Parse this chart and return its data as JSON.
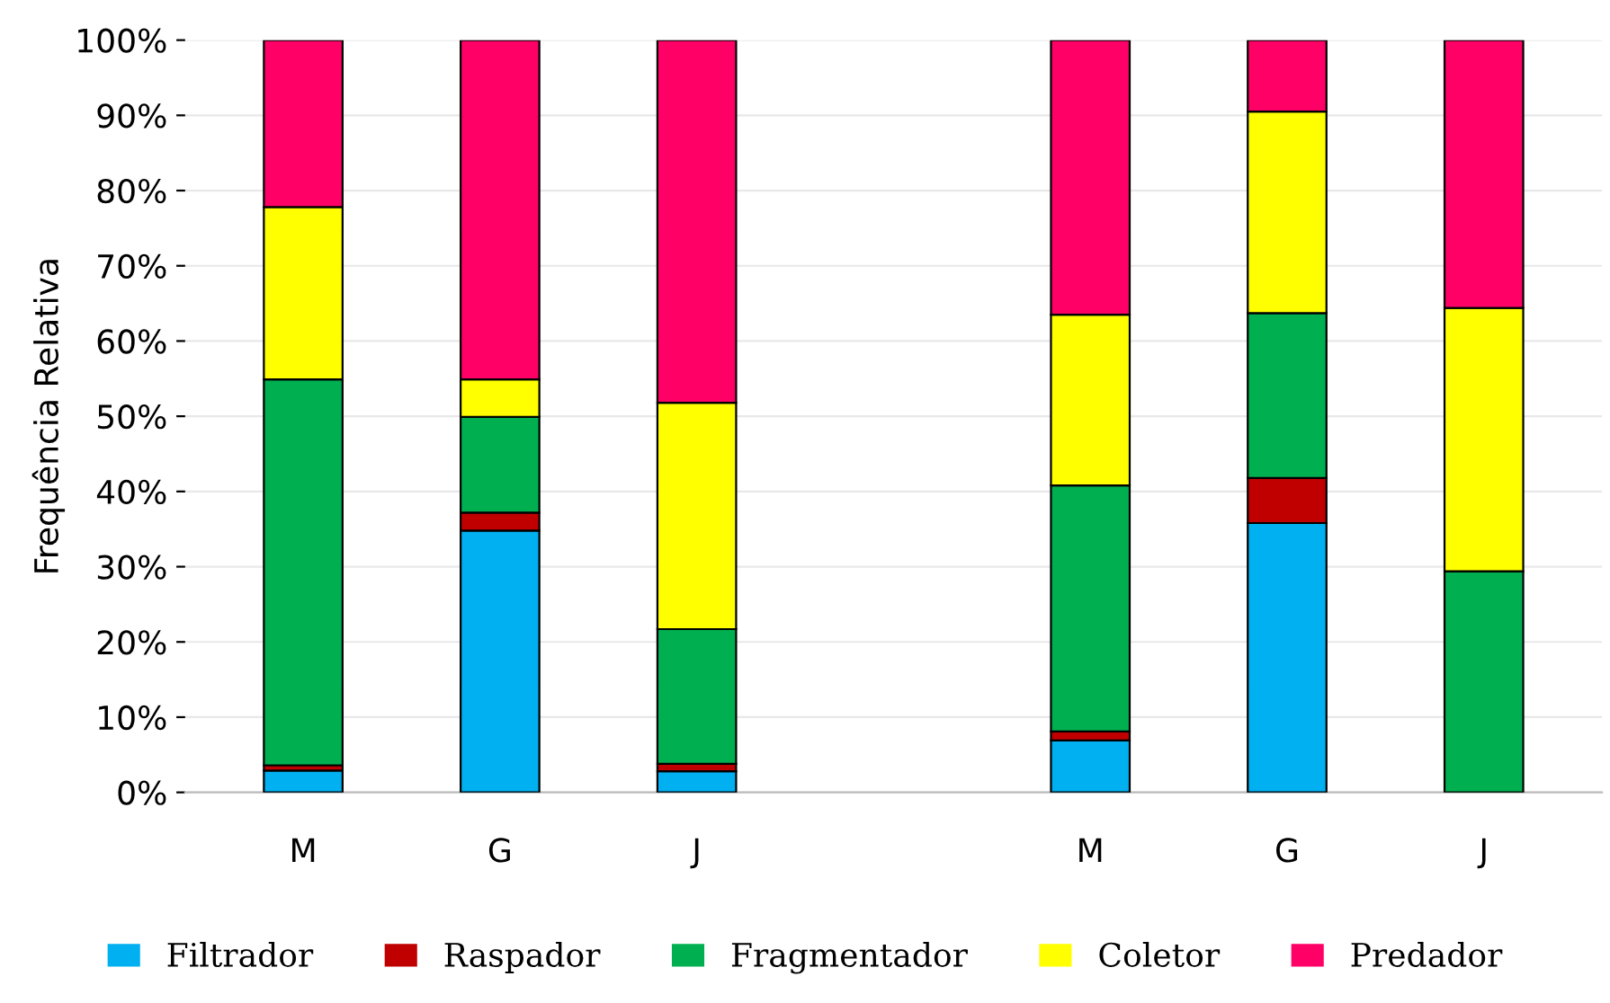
{
  "chart_data": {
    "type": "bar",
    "stacked": true,
    "ylabel": "Frequência Relativa",
    "categories": [
      "M",
      "G",
      "J",
      null,
      "M",
      "G",
      "J"
    ],
    "series": [
      {
        "name": "Filtrador",
        "color": "#00b0f0",
        "values": [
          2.9,
          34.8,
          2.8,
          null,
          6.9,
          35.8,
          null
        ]
      },
      {
        "name": "Raspador",
        "color": "#c00000",
        "values": [
          0.7,
          2.4,
          1.0,
          null,
          1.2,
          6.0,
          null
        ]
      },
      {
        "name": "Fragmentador",
        "color": "#00b050",
        "values": [
          51.3,
          12.7,
          17.9,
          null,
          32.7,
          21.9,
          29.4
        ]
      },
      {
        "name": "Coletor",
        "color": "#ffff00",
        "values": [
          22.9,
          5.0,
          30.1,
          null,
          22.7,
          26.8,
          35.0
        ]
      },
      {
        "name": "Predador",
        "color": "#ff0066",
        "values": [
          22.2,
          45.1,
          48.2,
          null,
          36.5,
          9.5,
          35.6
        ]
      }
    ],
    "ylim": [
      0,
      100
    ],
    "yticks": [
      {
        "value": 0,
        "label": "0%"
      },
      {
        "value": 10,
        "label": "10%"
      },
      {
        "value": 20,
        "label": "20%"
      },
      {
        "value": 30,
        "label": "30%"
      },
      {
        "value": 40,
        "label": "40%"
      },
      {
        "value": 50,
        "label": "50%"
      },
      {
        "value": 60,
        "label": "60%"
      },
      {
        "value": 70,
        "label": "70%"
      },
      {
        "value": 80,
        "label": "80%"
      },
      {
        "value": 90,
        "label": "90%"
      },
      {
        "value": 100,
        "label": "100%"
      }
    ],
    "grid": "y",
    "legend": "bottom"
  }
}
